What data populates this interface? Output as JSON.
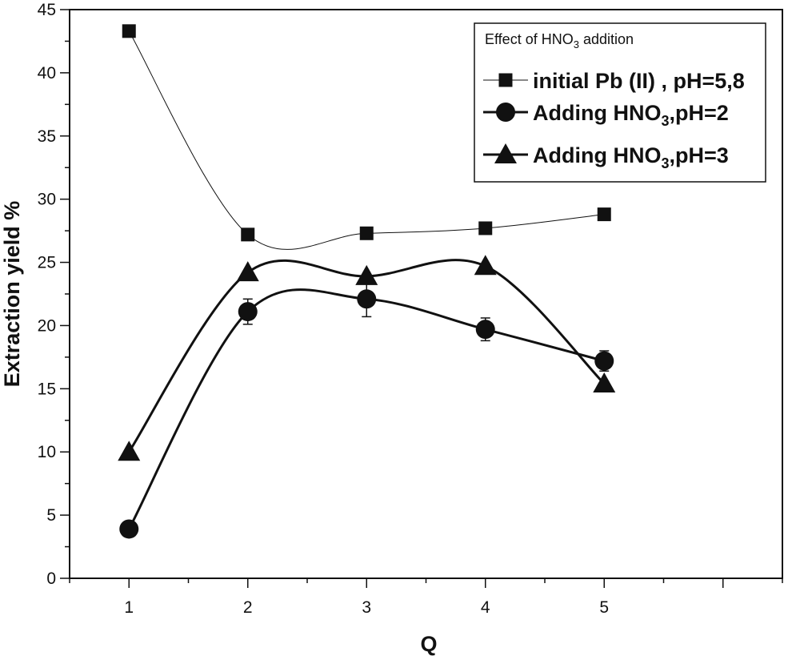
{
  "chart_data": {
    "type": "line",
    "xlabel": "Q",
    "ylabel": "Extraction yield %",
    "xlim": [
      0.5,
      6.5
    ],
    "ylim": [
      0,
      45
    ],
    "x_ticks": [
      1,
      2,
      3,
      4,
      5
    ],
    "y_ticks": [
      0,
      5,
      10,
      15,
      20,
      25,
      30,
      35,
      40,
      45
    ],
    "grid": false,
    "legend": {
      "placement": "top-right",
      "title": {
        "main": "Effect of HNO",
        "sub": "3",
        "rest": " addition"
      }
    },
    "x": [
      1,
      2,
      3,
      4,
      5
    ],
    "series": [
      {
        "name": "initial Pb (II) , pH=5,8",
        "name_parts": {
          "pre": "initial Pb (II) , pH=5,8",
          "sub": "",
          "post": ""
        },
        "marker": "square",
        "line": "thin",
        "values": [
          43.3,
          27.2,
          27.3,
          27.7,
          28.8
        ],
        "errors": [
          0,
          0,
          0,
          0,
          0
        ]
      },
      {
        "name": "Adding HNO3,pH=2",
        "name_parts": {
          "pre": "Adding HNO",
          "sub": "3",
          "post": ",pH=2"
        },
        "marker": "circle",
        "line": "thick",
        "values": [
          3.9,
          21.1,
          22.1,
          19.7,
          17.2
        ],
        "errors": [
          0,
          1.0,
          1.4,
          0.9,
          0.8
        ]
      },
      {
        "name": "Adding HNO3,pH=3",
        "name_parts": {
          "pre": "Adding HNO",
          "sub": "3",
          "post": ",pH=3"
        },
        "marker": "triangle",
        "line": "thick",
        "values": [
          10.0,
          24.2,
          23.9,
          24.7,
          15.4
        ],
        "errors": [
          0,
          0,
          0,
          0,
          0
        ]
      }
    ],
    "colors": {
      "ink": "#111111",
      "background": "#ffffff"
    }
  }
}
